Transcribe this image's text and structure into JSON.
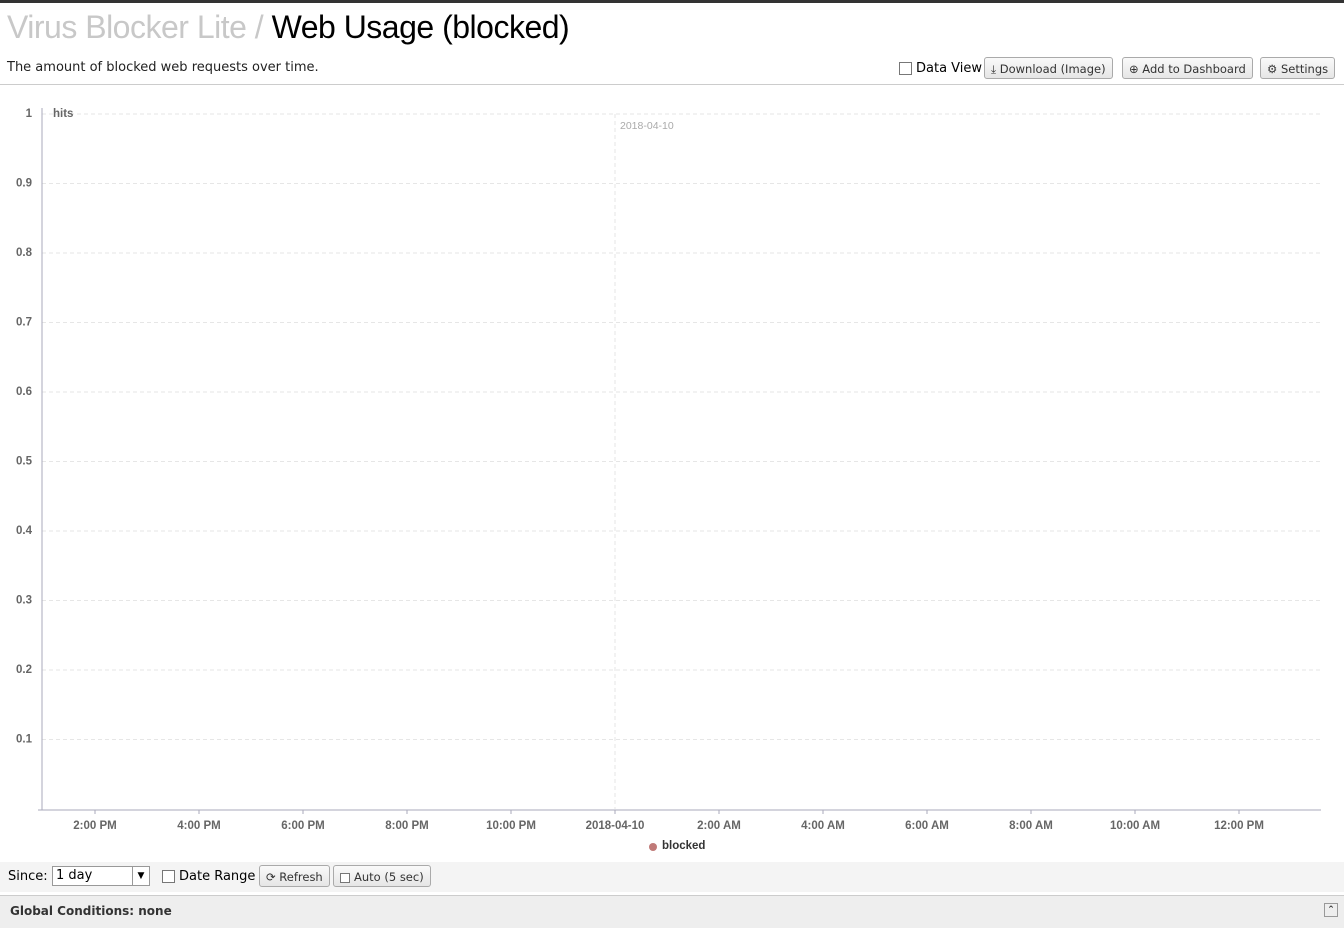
{
  "header": {
    "app": "Virus Blocker Lite /",
    "title": "Web Usage (blocked)",
    "description": "The amount of blocked web requests over time."
  },
  "toolbar": {
    "data_view": "Data View",
    "download": "Download (Image)",
    "add_dashboard": "Add to Dashboard",
    "settings": "Settings"
  },
  "chart_data": {
    "type": "line",
    "y_label": "hits",
    "annotation": "2018-04-10",
    "x_tick_labels": [
      "2:00 PM",
      "4:00 PM",
      "6:00 PM",
      "8:00 PM",
      "10:00 PM",
      "2018-04-10",
      "2:00 AM",
      "4:00 AM",
      "6:00 AM",
      "8:00 AM",
      "10:00 AM",
      "12:00 PM"
    ],
    "x": [],
    "series": [
      {
        "name": "blocked",
        "color": "#c07a78",
        "values": []
      }
    ],
    "ylim": [
      0,
      1
    ],
    "yticks": [
      0.1,
      0.2,
      0.3,
      0.4,
      0.5,
      0.6,
      0.7,
      0.8,
      0.9,
      1
    ],
    "grid": true
  },
  "footer": {
    "since_label": "Since:",
    "since_value": "1 day",
    "date_range": "Date Range",
    "refresh": "Refresh",
    "auto": "Auto (5 sec)",
    "global": "Global Conditions: none"
  }
}
